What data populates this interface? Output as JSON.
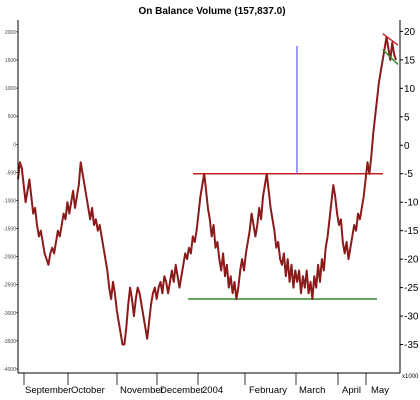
{
  "chart_data": {
    "type": "line",
    "title": "On Balance Volume (157,837.0)",
    "unit": "x1000",
    "left_axis_tick_labels": [
      "2000",
      "1500",
      "1000",
      "500",
      "0",
      "-500",
      "-1000",
      "-1500",
      "-2000",
      "-2500",
      "-3000",
      "-3500",
      "-4000"
    ],
    "right_axis": {
      "range": [
        -40,
        22
      ],
      "ticks": [
        20,
        15,
        10,
        5,
        0,
        -5,
        -10,
        -15,
        -20,
        -25,
        -30,
        -35
      ]
    },
    "x_axis_labels": [
      "September",
      "October",
      "November",
      "December",
      "2004",
      "February",
      "March",
      "April",
      "May"
    ],
    "grid": false,
    "series": [
      {
        "color": "#8b1a1a",
        "values": [
          -6,
          -3,
          -4,
          -7,
          -10,
          -8,
          -6,
          -9,
          -12,
          -11,
          -14,
          -16,
          -15,
          -17,
          -19,
          -20,
          -21,
          -19,
          -18,
          -19,
          -17,
          -15,
          -16,
          -14,
          -12,
          -13,
          -10,
          -12,
          -10,
          -8,
          -11,
          -9,
          -7,
          -3,
          -5,
          -7,
          -9,
          -11,
          -13,
          -11,
          -14,
          -13,
          -15,
          -14,
          -16,
          -18,
          -20,
          -22,
          -25,
          -27,
          -24,
          -26,
          -29,
          -31,
          -33,
          -35,
          -35,
          -32,
          -28,
          -25,
          -27,
          -30,
          -27,
          -25,
          -26,
          -28,
          -30,
          -32,
          -34,
          -31,
          -28,
          -26,
          -25,
          -27,
          -25,
          -24,
          -26,
          -23,
          -24,
          -26,
          -24,
          -22,
          -24,
          -21,
          -23,
          -25,
          -23,
          -21,
          -19,
          -20,
          -18,
          -19,
          -16,
          -17,
          -15,
          -12,
          -9,
          -7,
          -5,
          -8,
          -11,
          -13,
          -16,
          -14,
          -18,
          -17,
          -20,
          -22,
          -19,
          -23,
          -21,
          -25,
          -23,
          -26,
          -24,
          -27,
          -25,
          -22,
          -20,
          -22,
          -19,
          -17,
          -15,
          -12,
          -14,
          -16,
          -14,
          -11,
          -13,
          -9,
          -7,
          -5,
          -8,
          -11,
          -13,
          -15,
          -18,
          -17,
          -20,
          -21,
          -19,
          -23,
          -20,
          -24,
          -21,
          -25,
          -22,
          -24,
          -22,
          -26,
          -23,
          -25,
          -22,
          -26,
          -24,
          -27,
          -23,
          -25,
          -21,
          -24,
          -20,
          -22,
          -18,
          -16,
          -13,
          -10,
          -7,
          -9,
          -12,
          -14,
          -13,
          -17,
          -19,
          -17,
          -20,
          -18,
          -16,
          -14,
          -15,
          -12,
          -13,
          -11,
          -9,
          -6,
          -3,
          -5,
          -2,
          2,
          5,
          8,
          11,
          13,
          15,
          17,
          19,
          17,
          15,
          18,
          16,
          15
        ]
      }
    ],
    "lines": [
      {
        "kind": "resistance",
        "color": "#cc1f1f",
        "value": -5
      },
      {
        "kind": "support",
        "color": "#2e8b2e",
        "value": -27
      },
      {
        "kind": "vertical-marker",
        "color": "#5a5aff"
      }
    ],
    "trend_channel": {
      "upper_color": "#cc1f1f",
      "lower_color": "#2e8b2e"
    }
  }
}
